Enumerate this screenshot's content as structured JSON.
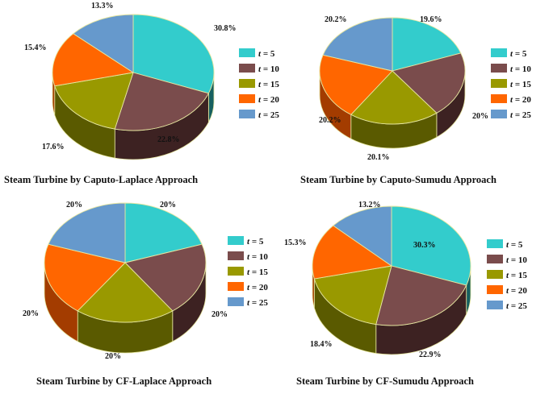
{
  "chart_data": [
    {
      "type": "pie",
      "title": "Steam Turbine by Caputo-Laplace Approach",
      "categories": [
        "t = 5",
        "t = 10",
        "t = 15",
        "t = 20",
        "t = 25"
      ],
      "values": [
        30.8,
        22.8,
        17.6,
        15.4,
        13.3
      ],
      "labels": [
        "30.8%",
        "22.8%",
        "17.6%",
        "15.4%",
        "13.3%"
      ],
      "legend_position": "right"
    },
    {
      "type": "pie",
      "title": "Steam Turbine by Caputo-Sumudu Approach",
      "categories": [
        "t = 5",
        "t = 10",
        "t = 15",
        "t = 20",
        "t = 25"
      ],
      "values": [
        19.6,
        20,
        20.1,
        20.2,
        20.2
      ],
      "labels": [
        "19.6%",
        "20%",
        "20.1%",
        "20.2%",
        "20.2%"
      ],
      "legend_position": "right"
    },
    {
      "type": "pie",
      "title": "Steam Turbine by CF-Laplace Approach",
      "categories": [
        "t = 5",
        "t = 10",
        "t = 15",
        "t = 20",
        "t = 25"
      ],
      "values": [
        20,
        20,
        20,
        20,
        20
      ],
      "labels": [
        "20%",
        "20%",
        "20%",
        "20%",
        "20%"
      ],
      "legend_position": "right"
    },
    {
      "type": "pie",
      "title": "Steam Turbine by CF-Sumudu Approach",
      "categories": [
        "t = 5",
        "t = 10",
        "t = 15",
        "t = 20",
        "t = 25"
      ],
      "values": [
        30.3,
        22.9,
        18.4,
        15.3,
        13.2
      ],
      "labels": [
        "30.3%",
        "22.9%",
        "18.4%",
        "15.3%",
        "13.2%"
      ],
      "legend_position": "right"
    }
  ],
  "colors": {
    "top": [
      "#33cccc",
      "#7a4c4c",
      "#999900",
      "#ff6600",
      "#6699cc"
    ],
    "side": [
      "#176060",
      "#3d2222",
      "#5a5a00",
      "#a33c00",
      "#36506e"
    ],
    "outline": "#e6e6a0"
  }
}
